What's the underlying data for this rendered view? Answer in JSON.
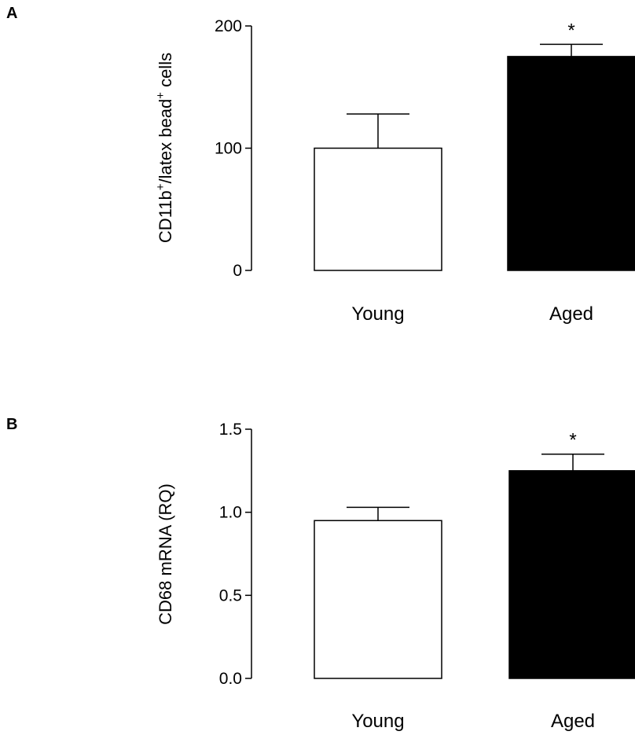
{
  "chart_data": [
    {
      "panel_label": "A",
      "type": "bar",
      "categories": [
        "Young",
        "Aged"
      ],
      "values": [
        100,
        175
      ],
      "error": [
        28,
        10
      ],
      "bar_colors": [
        "#ffffff",
        "#000000"
      ],
      "significance": [
        "",
        "*"
      ],
      "ylabel_parts": [
        "CD11b",
        "+",
        "/latex bead",
        "+",
        " cells"
      ],
      "ylim": [
        0,
        200
      ],
      "yticks": [
        "0",
        "100",
        "200"
      ],
      "ytick_values": [
        0,
        100,
        200
      ]
    },
    {
      "panel_label": "B",
      "type": "bar",
      "categories": [
        "Young",
        "Aged"
      ],
      "values": [
        0.95,
        1.25
      ],
      "error": [
        0.08,
        0.1
      ],
      "bar_colors": [
        "#ffffff",
        "#000000"
      ],
      "significance": [
        "",
        "*"
      ],
      "ylabel": "CD68 mRNA (RQ)",
      "ylim": [
        0,
        1.5
      ],
      "yticks": [
        "0.0",
        "0.5",
        "1.0",
        "1.5"
      ],
      "ytick_values": [
        0,
        0.5,
        1.0,
        1.5
      ]
    }
  ]
}
